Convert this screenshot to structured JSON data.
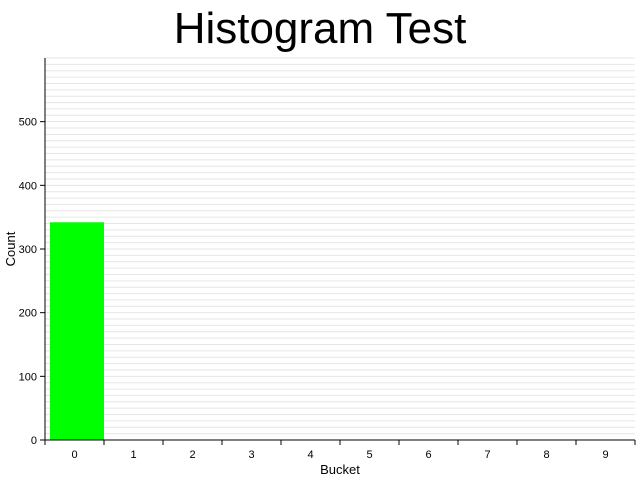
{
  "chart_data": {
    "type": "bar",
    "title": "Histogram Test",
    "xlabel": "Bucket",
    "ylabel": "Count",
    "categories": [
      "0",
      "1",
      "2",
      "3",
      "4",
      "5",
      "6",
      "7",
      "8",
      "9"
    ],
    "values": [
      342,
      0,
      0,
      0,
      0,
      0,
      0,
      0,
      0,
      0
    ],
    "ylim": [
      0,
      600
    ],
    "yticks": [
      0,
      100,
      200,
      300,
      400,
      500
    ],
    "grid": true,
    "bar_color": "#00ff00",
    "grid_color": "#e6e6e6"
  }
}
